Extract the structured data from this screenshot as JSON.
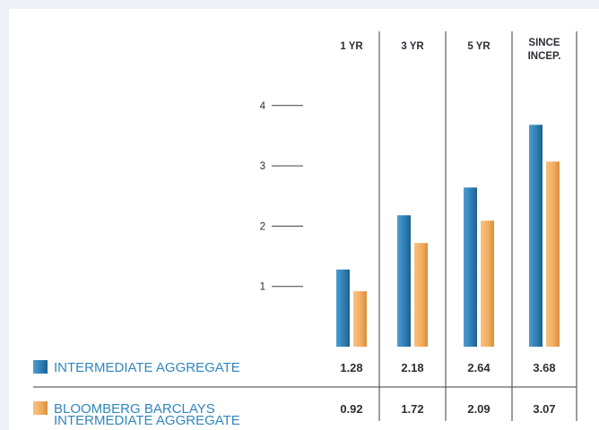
{
  "chart_data": {
    "type": "bar",
    "categories": [
      "1 YR",
      "3 YR",
      "5 YR",
      "SINCE INCEP."
    ],
    "category_label_lines": [
      [
        "1 YR"
      ],
      [
        "3 YR"
      ],
      [
        "5 YR"
      ],
      [
        "SINCE",
        "INCEP."
      ]
    ],
    "yticks": [
      1,
      2,
      3,
      4
    ],
    "ylim": [
      0,
      4
    ],
    "grid": false,
    "legend_position": "bottom-left",
    "series": [
      {
        "name": "INTERMEDIATE AGGREGATE",
        "name_lines": [
          "INTERMEDIATE AGGREGATE"
        ],
        "values": [
          1.28,
          2.18,
          2.64,
          3.68
        ],
        "value_labels": [
          "1.28",
          "2.18",
          "2.64",
          "3.68"
        ],
        "color": "#2f7fb5"
      },
      {
        "name": "BLOOMBERG BARCLAYS INTERMEDIATE AGGREGATE",
        "name_lines": [
          "BLOOMBERG BARCLAYS",
          "INTERMEDIATE AGGREGATE"
        ],
        "values": [
          0.92,
          1.72,
          2.09,
          3.07
        ],
        "value_labels": [
          "0.92",
          "1.72",
          "2.09",
          "3.07"
        ],
        "color": "#f2ad60"
      }
    ]
  }
}
